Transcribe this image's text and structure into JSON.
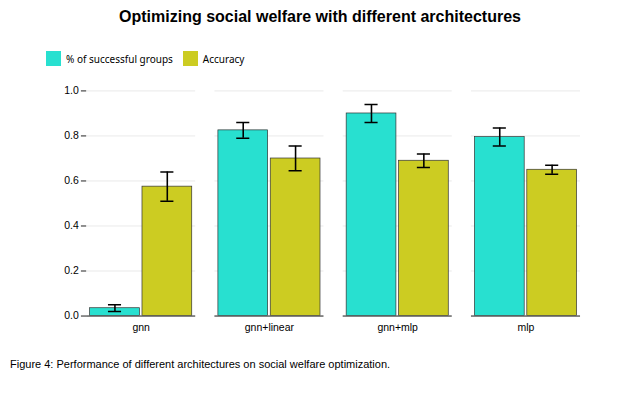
{
  "chart_data": {
    "type": "bar",
    "title": "Optimizing social welfare with different architectures",
    "caption": "Figure 4: Performance of different architectures on social welfare optimization.",
    "categories": [
      "gnn",
      "gnn+linear",
      "gnn+mlp",
      "mlp"
    ],
    "series": [
      {
        "name": "% of successful groups",
        "color": "#28E0D0",
        "values": [
          0.035,
          0.825,
          0.9,
          0.795
        ],
        "errors": [
          0.015,
          0.035,
          0.04,
          0.04
        ]
      },
      {
        "name": "Accuracy",
        "color": "#CCCC22",
        "values": [
          0.575,
          0.7,
          0.69,
          0.65
        ],
        "errors": [
          0.065,
          0.055,
          0.03,
          0.02
        ]
      }
    ],
    "ylim": [
      0.0,
      1.0
    ],
    "yticks": [
      {
        "value": 0,
        "label": "0.0"
      },
      0.2,
      0.4,
      0.6,
      0.8,
      {
        "value": 1,
        "label": "1.0"
      }
    ],
    "grid": true,
    "legend": "upper left"
  }
}
